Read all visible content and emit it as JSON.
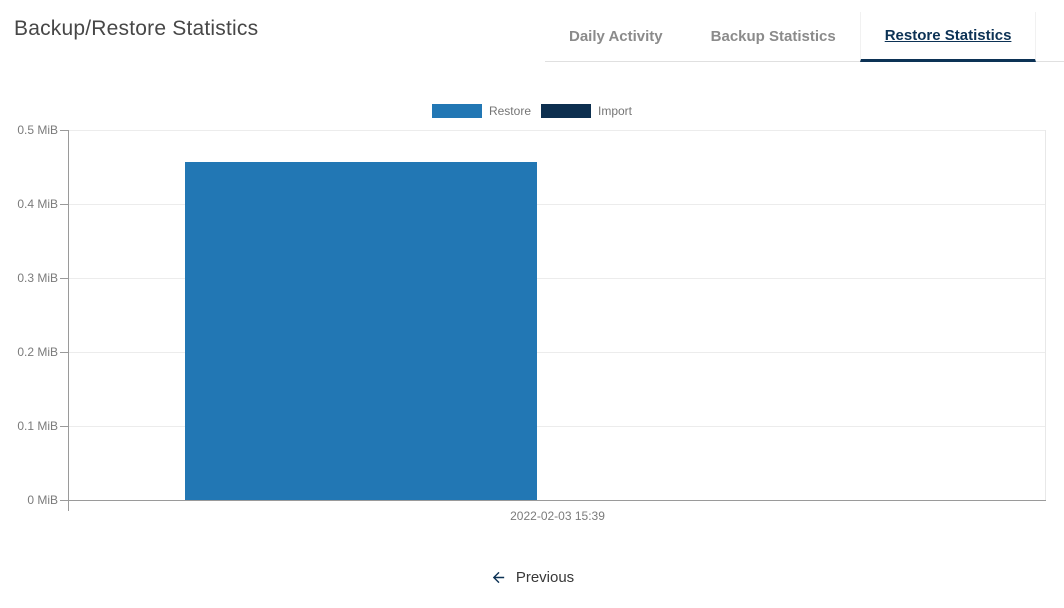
{
  "header": {
    "title": "Backup/Restore Statistics"
  },
  "tabs": [
    {
      "label": "Daily Activity",
      "active": false
    },
    {
      "label": "Backup Statistics",
      "active": false
    },
    {
      "label": "Restore Statistics",
      "active": true
    }
  ],
  "pager": {
    "previous_label": "Previous"
  },
  "colors": {
    "restore_bar": "#2277b4",
    "import_bar": "#0d2f4f",
    "active_tab": "#0c3255",
    "inactive_tab_text": "#8b8b8b",
    "axis_text": "#7b7b7b",
    "axis_line": "#9a9a9a",
    "gridline": "#ececec"
  },
  "chart_data": {
    "type": "bar",
    "categories": [
      "2022-02-03 15:39"
    ],
    "series": [
      {
        "name": "Restore",
        "color": "#2277b4",
        "values": [
          0.457
        ]
      },
      {
        "name": "Import",
        "color": "#0d2f4f",
        "values": [
          0
        ]
      }
    ],
    "ylabel": "MiB",
    "ylim": [
      0,
      0.5
    ],
    "yticks": [
      {
        "value": 0,
        "label": "0 MiB"
      },
      {
        "value": 0.1,
        "label": "0.1 MiB"
      },
      {
        "value": 0.2,
        "label": "0.2 MiB"
      },
      {
        "value": 0.3,
        "label": "0.3 MiB"
      },
      {
        "value": 0.4,
        "label": "0.4 MiB"
      },
      {
        "value": 0.5,
        "label": "0.5 MiB"
      }
    ],
    "grid": true,
    "legend_position": "top"
  }
}
